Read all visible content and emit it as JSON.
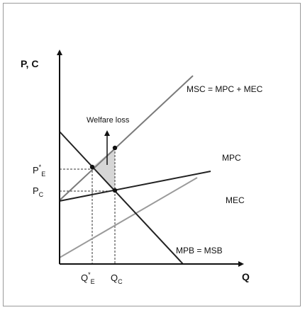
{
  "axes": {
    "y_label": "P, C",
    "x_label": "Q"
  },
  "curves": {
    "msc": "MSC = MPC + MEC",
    "mpc": "MPC",
    "mec": "MEC",
    "mpb": "MPB = MSB"
  },
  "annotations": {
    "welfare_loss": "Welfare loss"
  },
  "price_ticks": {
    "p_e": {
      "main": "P",
      "sup": "*",
      "sub": "E"
    },
    "p_c": {
      "main": "P",
      "sub": "C"
    }
  },
  "quantity_ticks": {
    "q_e": {
      "main": "Q",
      "sup": "*",
      "sub": "E"
    },
    "q_c": {
      "main": "Q",
      "sub": "C"
    }
  },
  "colors": {
    "msc_line": "#7a7a7a",
    "mec_line": "#9a9a9a",
    "dark_line": "#222222",
    "welfare_fill": "#d6d6d6",
    "frame": "#9a9a9a"
  }
}
